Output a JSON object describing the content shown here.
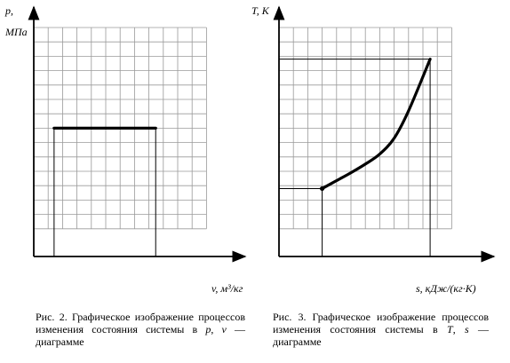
{
  "chart_data": [
    {
      "type": "line",
      "title": "",
      "ylabel_top": "p,",
      "ylabel_bottom": "МПа",
      "xlabel": "v,  м³/кг",
      "grid": true,
      "grid_cols": 12,
      "grid_rows": 14,
      "x": [
        0,
        8
      ],
      "series": [
        {
          "values": [
            7,
            7
          ]
        }
      ],
      "dropline_x": [
        0,
        8
      ],
      "xlim": [
        -1.6,
        12
      ],
      "ylim": [
        0,
        14
      ]
    },
    {
      "type": "line",
      "title": "",
      "ylabel_top": "T, K",
      "ylabel_bottom": "",
      "xlabel": "s,  кДж/(кг·К)",
      "grid": true,
      "grid_cols": 12,
      "grid_rows": 14,
      "x": [
        3,
        4,
        5,
        6,
        7,
        8,
        9,
        10.5
      ],
      "series": [
        {
          "values": [
            2.8,
            3.35,
            3.9,
            4.5,
            5.2,
            6.3,
            8.2,
            11.8
          ]
        }
      ],
      "dropline_x": [
        3,
        10.5
      ],
      "xlim": [
        0,
        12
      ],
      "ylim": [
        0,
        14
      ]
    }
  ],
  "captions": [
    {
      "line1": "Рис. 2. Графическое изображение процессов изменения состояния",
      "line2_prefix": "системы в ",
      "var1": "p",
      "sep": ", ",
      "var2": "v",
      "suffix": " — диаграмме"
    },
    {
      "line1": "Рис. 3. Графическое изображение процессов изменения состояния",
      "line2_prefix": "системы в ",
      "var1": "T",
      "sep": ", ",
      "var2": "s",
      "suffix": " — диаграмме"
    }
  ]
}
